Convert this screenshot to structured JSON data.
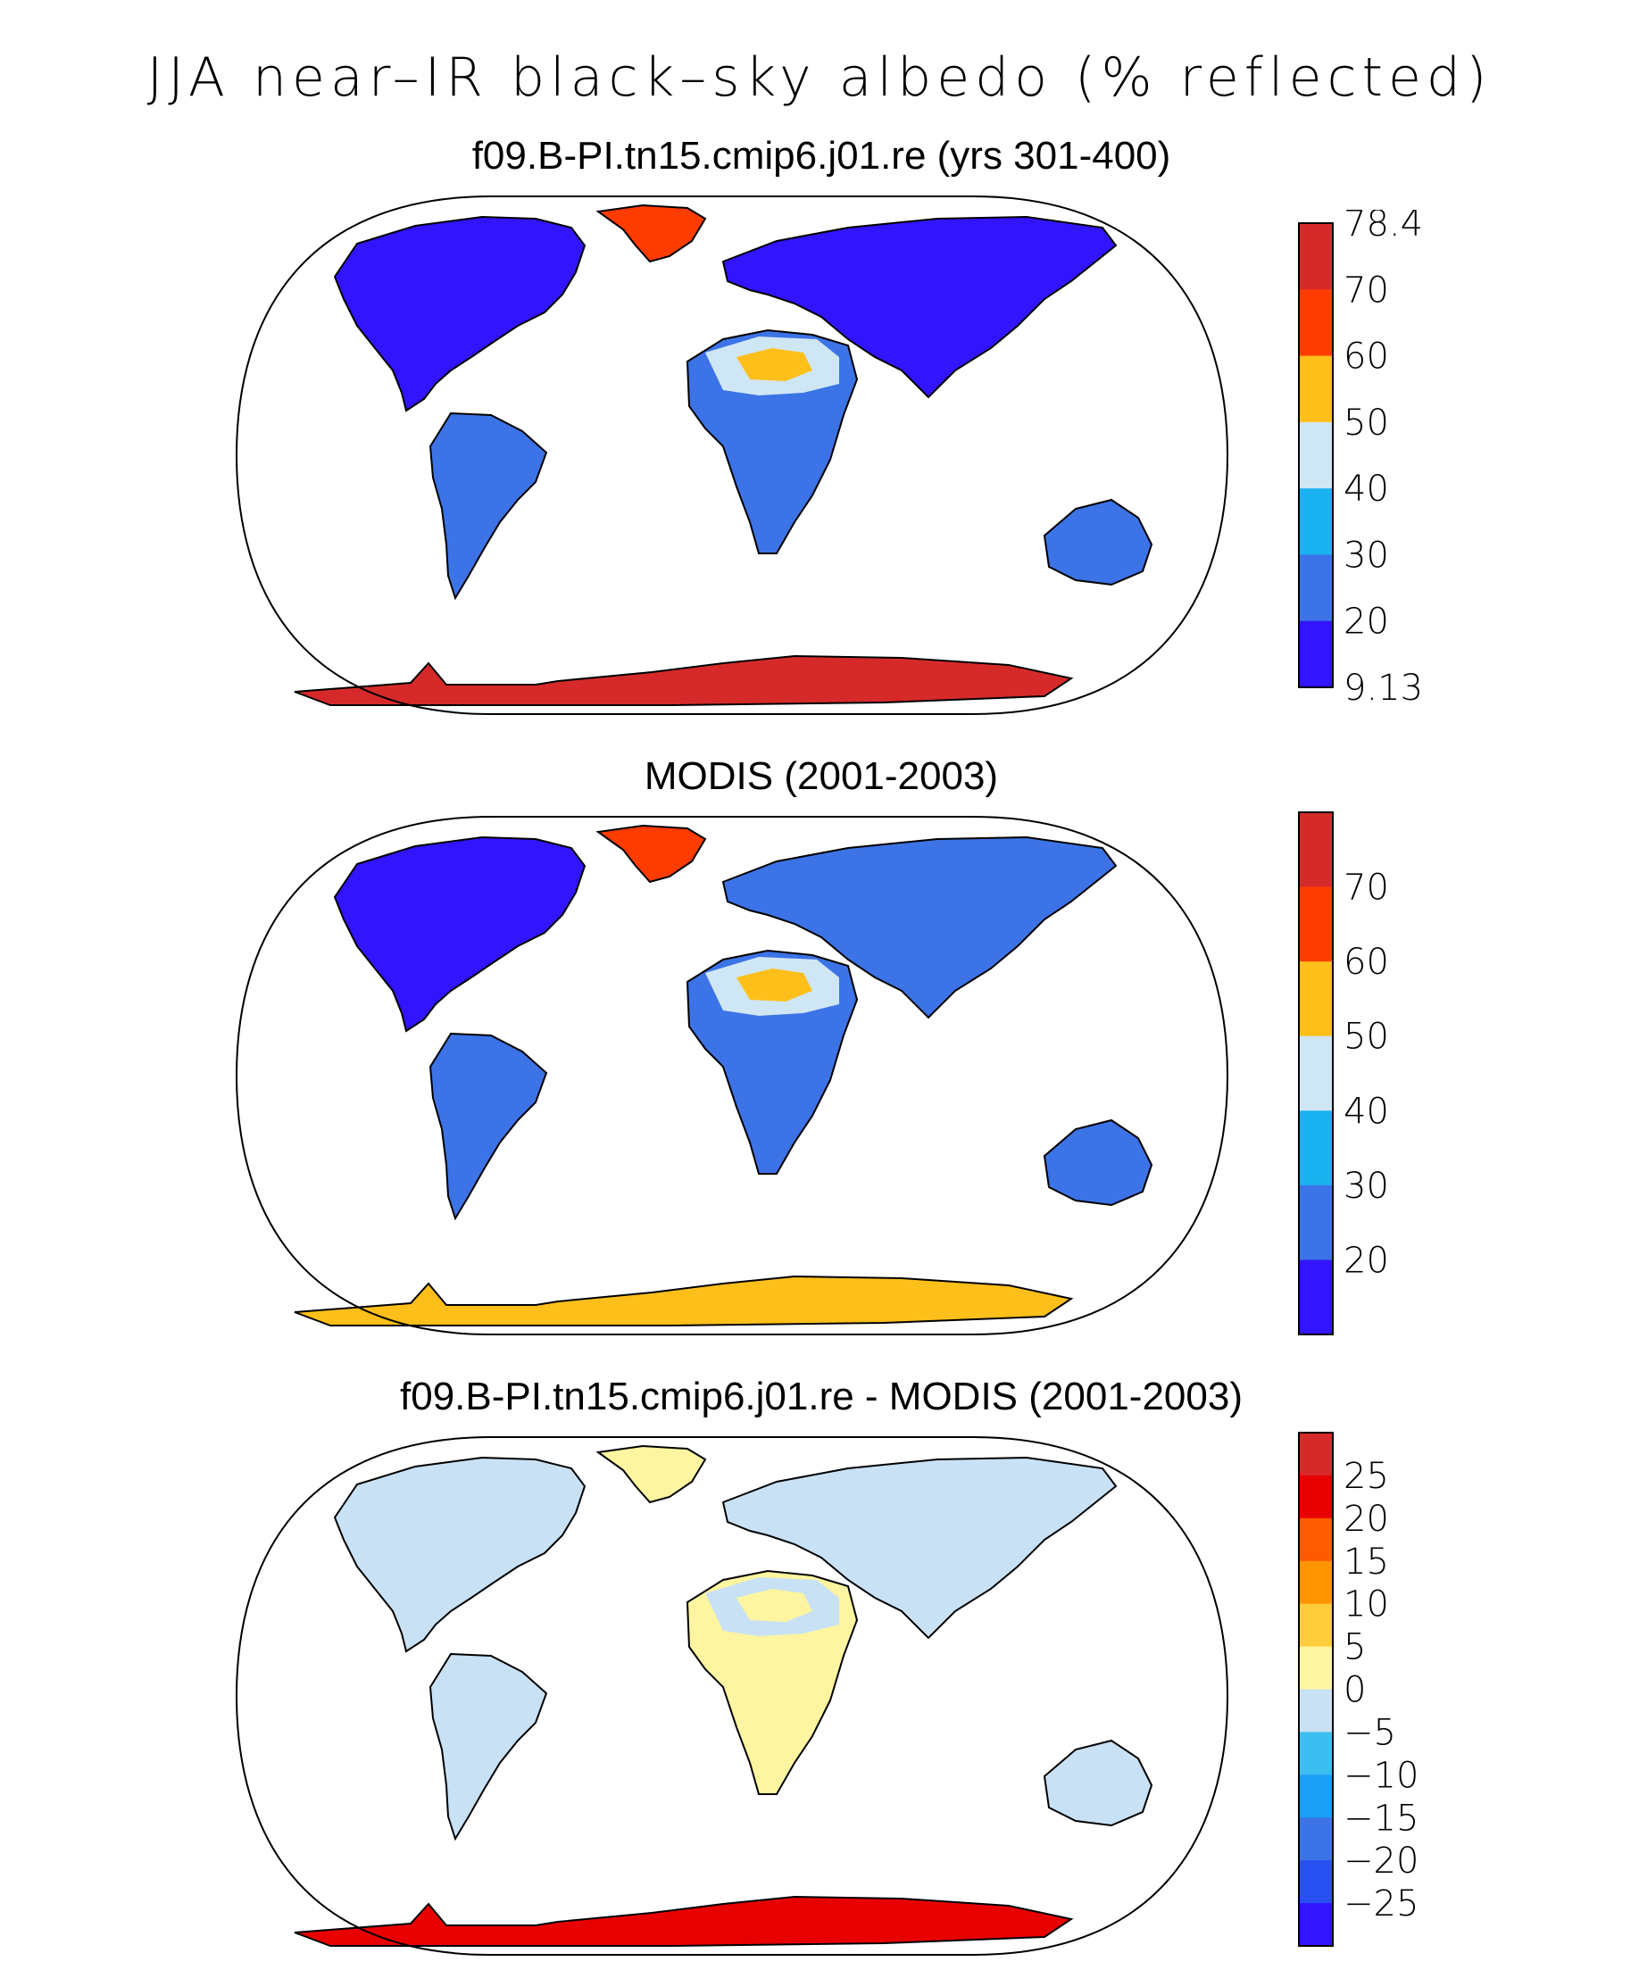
{
  "title": "JJA near–IR black–sky albedo (% reflected)",
  "panels": [
    {
      "id": "model",
      "title": "f09.B-PI.tn15.cmip6.j01.re (yrs 301-400)",
      "colorbar": {
        "labels": [
          "78.4",
          "70",
          "60",
          "50",
          "40",
          "30",
          "20",
          "9.13"
        ],
        "colors": [
          "#d62a2a",
          "#ff3c00",
          "#ffbf1a",
          "#cfe6f5",
          "#1ab2f0",
          "#3c73e6",
          "#3214ff"
        ]
      },
      "land_colors": {
        "greenland": "#ff3c00",
        "antarctica": "#d62a2a",
        "north_america": "#3214ff",
        "eurasia": "#3214ff",
        "sahara": "#cfe6f5",
        "sahara_patch": "#ffbf1a",
        "africa": "#3c73e6",
        "south_america": "#3c73e6",
        "australia": "#3c73e6"
      }
    },
    {
      "id": "obs",
      "title": "MODIS (2001-2003)",
      "colorbar": {
        "labels": [
          "70",
          "60",
          "50",
          "40",
          "30",
          "20"
        ],
        "colors": [
          "#d62a2a",
          "#ff3c00",
          "#ffbf1a",
          "#cfe6f5",
          "#1ab2f0",
          "#3c73e6",
          "#3214ff"
        ]
      },
      "land_colors": {
        "greenland": "#ff3c00",
        "antarctica": "#ffbf1a",
        "north_america": "#3214ff",
        "eurasia": "#3c73e6",
        "sahara": "#cfe6f5",
        "sahara_patch": "#ffbf1a",
        "africa": "#3c73e6",
        "south_america": "#3c73e6",
        "australia": "#3c73e6"
      }
    },
    {
      "id": "diff",
      "title": "f09.B-PI.tn15.cmip6.j01.re - MODIS (2001-2003)",
      "colorbar": {
        "labels": [
          "25",
          "20",
          "15",
          "10",
          "5",
          "0",
          "−5",
          "−10",
          "−15",
          "−20",
          "−25"
        ],
        "colors": [
          "#d62a2a",
          "#e80000",
          "#ff5a00",
          "#ff9600",
          "#ffcd3c",
          "#fff5a0",
          "#c8e1f5",
          "#3cbef0",
          "#1aa0f5",
          "#3c73e6",
          "#2850f0",
          "#3214ff"
        ]
      },
      "land_colors": {
        "greenland": "#fff5a0",
        "antarctica": "#e80000",
        "north_america": "#c8e1f5",
        "eurasia": "#c8e1f5",
        "sahara": "#c8e1f5",
        "sahara_patch": "#fff5a0",
        "africa": "#fff5a0",
        "south_america": "#c8e1f5",
        "australia": "#c8e1f5"
      }
    }
  ]
}
